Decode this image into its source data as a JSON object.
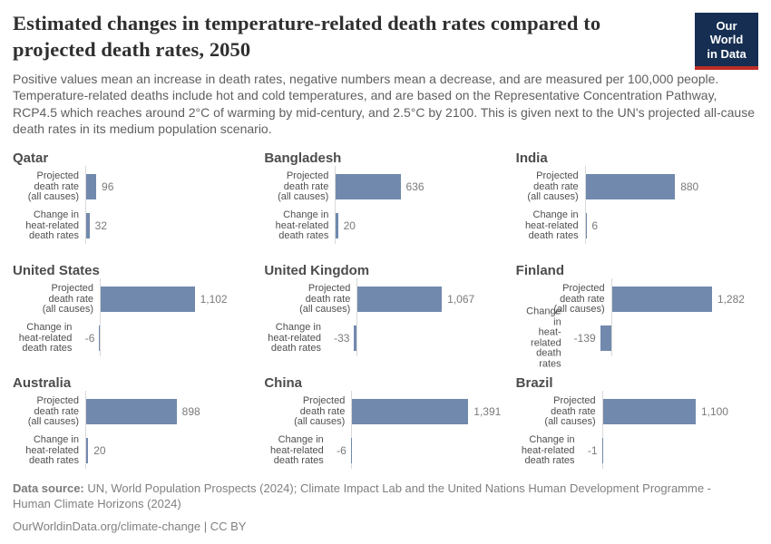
{
  "header": {
    "title": "Estimated changes in temperature-related death rates compared to projected death rates, 2050",
    "subtitle": "Positive values mean an increase in death rates, negative numbers mean a decrease, and are measured per 100,000 people. Temperature-related deaths include hot and cold temperatures, and are based on the Representative Concentration Pathway, RCP4.5 which reaches around 2°C of warming by mid-century, and 2.5°C by 2100. This is given next to the UN's projected all-cause death rates in its medium population scenario.",
    "logo": {
      "line1": "Our World",
      "line2": "in Data"
    }
  },
  "chart_data": {
    "type": "bar",
    "orientation": "horizontal",
    "title": "Estimated changes in temperature-related death rates compared to projected death rates, 2050",
    "bar_color": "#7189ad",
    "unit": "deaths per 100,000 people",
    "categories": [
      "Projected death rate (all causes)",
      "Change in heat-related death rates"
    ],
    "category_lines": [
      [
        "Projected",
        "death rate",
        "(all causes)"
      ],
      [
        "Change in",
        "heat-related",
        "death rates"
      ]
    ],
    "panels": [
      {
        "country": "Qatar",
        "values": [
          96,
          32
        ],
        "labels": [
          "96",
          "32"
        ]
      },
      {
        "country": "Bangladesh",
        "values": [
          636,
          20
        ],
        "labels": [
          "636",
          "20"
        ]
      },
      {
        "country": "India",
        "values": [
          880,
          6
        ],
        "labels": [
          "880",
          "6"
        ]
      },
      {
        "country": "United States",
        "values": [
          1102,
          -6
        ],
        "labels": [
          "1,102",
          "-6"
        ]
      },
      {
        "country": "United Kingdom",
        "values": [
          1067,
          -33
        ],
        "labels": [
          "1,067",
          "-33"
        ]
      },
      {
        "country": "Finland",
        "values": [
          1282,
          -139
        ],
        "labels": [
          "1,282",
          "-139"
        ]
      },
      {
        "country": "Australia",
        "values": [
          898,
          20
        ],
        "labels": [
          "898",
          "20"
        ]
      },
      {
        "country": "China",
        "values": [
          1391,
          -6
        ],
        "labels": [
          "1,391",
          "-6"
        ]
      },
      {
        "country": "Brazil",
        "values": [
          1100,
          -1
        ],
        "labels": [
          "1,100",
          "-1"
        ]
      }
    ]
  },
  "footer": {
    "source_label": "Data source:",
    "source_text": " UN, World Population Prospects (2024); Climate Impact Lab and the United Nations Human Development Programme - Human Climate Horizons (2024)",
    "link_text": "OurWorldinData.org/climate-change | CC BY"
  }
}
